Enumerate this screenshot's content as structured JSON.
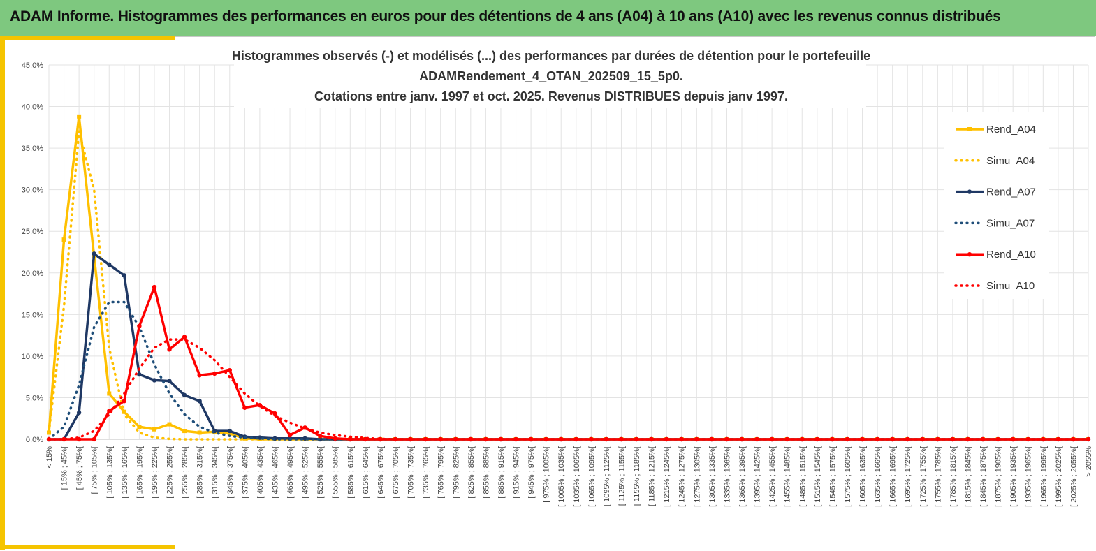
{
  "header": {
    "title": "ADAM Informe. Histogrammes des performances en euros pour des détentions de 4 ans (A04) à 10 ans (A10) avec les revenus connus distribués"
  },
  "chart_data": {
    "type": "line",
    "title_lines": [
      "Histogrammes observés (-) et modélisés (...) des performances par durées de détention pour le portefeuille",
      "ADAMRendement_4_OTAN_202509_15_5p0.",
      "Cotations entre janv. 1997 et oct. 2025. Revenus DISTRIBUES depuis janv 1997."
    ],
    "ylim": [
      0,
      45
    ],
    "y_ticks": [
      "0,0%",
      "5,0%",
      "10,0%",
      "15,0%",
      "20,0%",
      "25,0%",
      "30,0%",
      "35,0%",
      "40,0%",
      "45,0%"
    ],
    "grid": true,
    "legend_position": "right",
    "categories": [
      "< 15%",
      "[ 15% ; 45%[",
      "[ 45% ; 75%[",
      "[ 75% ; 105%[",
      "[ 105% ; 135%[",
      "[ 135% ; 165%[",
      "[ 165% ; 195%[",
      "[ 195% ; 225%[",
      "[ 225% ; 255%[",
      "[ 255% ; 285%[",
      "[ 285% ; 315%[",
      "[ 315% ; 345%[",
      "[ 345% ; 375%[",
      "[ 375% ; 405%[",
      "[ 405% ; 435%[",
      "[ 435% ; 465%[",
      "[ 465% ; 495%[",
      "[ 495% ; 525%[",
      "[ 525% ; 555%[",
      "[ 555% ; 585%[",
      "[ 585% ; 615%[",
      "[ 615% ; 645%[",
      "[ 645% ; 675%[",
      "[ 675% ; 705%[",
      "[ 705% ; 735%[",
      "[ 735% ; 765%[",
      "[ 765% ; 795%[",
      "[ 795% ; 825%[",
      "[ 825% ; 855%[",
      "[ 855% ; 885%[",
      "[ 885% ; 915%[",
      "[ 915% ; 945%[",
      "[ 945% ; 975%[",
      "[ 975% ; 1005%[",
      "[ 1005% ; 1035%[",
      "[ 1035% ; 1065%[",
      "[ 1065% ; 1095%[",
      "[ 1095% ; 1125%[",
      "[ 1125% ; 1155%[",
      "[ 1155% ; 1185%[",
      "[ 1185% ; 1215%[",
      "[ 1215% ; 1245%[",
      "[ 1245% ; 1275%[",
      "[ 1275% ; 1305%[",
      "[ 1305% ; 1335%[",
      "[ 1335% ; 1365%[",
      "[ 1365% ; 1395%[",
      "[ 1395% ; 1425%[",
      "[ 1425% ; 1455%[",
      "[ 1455% ; 1485%[",
      "[ 1485% ; 1515%[",
      "[ 1515% ; 1545%[",
      "[ 1545% ; 1575%[",
      "[ 1575% ; 1605%[",
      "[ 1605% ; 1635%[",
      "[ 1635% ; 1665%[",
      "[ 1665% ; 1695%[",
      "[ 1695% ; 1725%[",
      "[ 1725% ; 1755%[",
      "[ 1755% ; 1785%[",
      "[ 1785% ; 1815%[",
      "[ 1815% ; 1845%[",
      "[ 1845% ; 1875%[",
      "[ 1875% ; 1905%[",
      "[ 1905% ; 1935%[",
      "[ 1935% ; 1965%[",
      "[ 1965% ; 1995%[",
      "[ 1995% ; 2025%[",
      "[ 2025% ; 2055%[",
      "> 2055%"
    ],
    "series": [
      {
        "name": "Rend_A04",
        "color": "#FFC000",
        "dashed": false,
        "values": [
          0.8,
          24.0,
          38.8,
          22.0,
          5.5,
          3.3,
          1.5,
          1.2,
          1.8,
          1.0,
          0.8,
          0.9,
          0.7,
          0.1,
          0,
          0,
          0,
          0,
          0,
          0,
          0,
          0,
          0,
          0,
          0,
          0,
          0,
          0,
          0,
          0,
          0,
          0,
          0,
          0,
          0,
          0,
          0,
          0,
          0,
          0,
          0,
          0,
          0,
          0,
          0,
          0,
          0,
          0,
          0,
          0,
          0,
          0,
          0,
          0,
          0,
          0,
          0,
          0,
          0,
          0,
          0,
          0,
          0,
          0,
          0,
          0,
          0,
          0,
          0,
          0
        ]
      },
      {
        "name": "Simu_A04",
        "color": "#FFC000",
        "dashed": true,
        "values": [
          0.9,
          16.0,
          37.0,
          30.0,
          11.0,
          3.0,
          0.8,
          0.2,
          0.05,
          0,
          0,
          0,
          0,
          0,
          0,
          0,
          0,
          0,
          0,
          0,
          0,
          0,
          0,
          0,
          0,
          0,
          0,
          0,
          0,
          0,
          0,
          0,
          0,
          0,
          0,
          0,
          0,
          0,
          0,
          0,
          0,
          0,
          0,
          0,
          0,
          0,
          0,
          0,
          0,
          0,
          0,
          0,
          0,
          0,
          0,
          0,
          0,
          0,
          0,
          0,
          0,
          0,
          0,
          0,
          0,
          0,
          0,
          0,
          0,
          0
        ]
      },
      {
        "name": "Rend_A07",
        "color": "#1F3864",
        "dashed": false,
        "values": [
          0,
          0,
          3.2,
          22.3,
          21.0,
          19.7,
          7.8,
          7.1,
          7.0,
          5.3,
          4.6,
          1.0,
          1.0,
          0.3,
          0.2,
          0.1,
          0.1,
          0.1,
          0,
          0,
          0,
          0,
          0,
          0,
          0,
          0,
          0,
          0,
          0,
          0,
          0,
          0,
          0,
          0,
          0,
          0,
          0,
          0,
          0,
          0,
          0,
          0,
          0,
          0,
          0,
          0,
          0,
          0,
          0,
          0,
          0,
          0,
          0,
          0,
          0,
          0,
          0,
          0,
          0,
          0,
          0,
          0,
          0,
          0,
          0,
          0,
          0,
          0,
          0,
          0
        ]
      },
      {
        "name": "Simu_A07",
        "color": "#1F4E79",
        "dashed": true,
        "values": [
          0,
          1.5,
          6.5,
          13.5,
          16.5,
          16.5,
          13.5,
          9.0,
          5.5,
          3.0,
          1.5,
          0.8,
          0.4,
          0.2,
          0.1,
          0,
          0,
          0,
          0,
          0,
          0,
          0,
          0,
          0,
          0,
          0,
          0,
          0,
          0,
          0,
          0,
          0,
          0,
          0,
          0,
          0,
          0,
          0,
          0,
          0,
          0,
          0,
          0,
          0,
          0,
          0,
          0,
          0,
          0,
          0,
          0,
          0,
          0,
          0,
          0,
          0,
          0,
          0,
          0,
          0,
          0,
          0,
          0,
          0,
          0,
          0,
          0,
          0,
          0,
          0
        ]
      },
      {
        "name": "Rend_A10",
        "color": "#FF0000",
        "dashed": false,
        "values": [
          0,
          0,
          0,
          0,
          3.4,
          4.6,
          13.6,
          18.3,
          10.8,
          12.3,
          7.7,
          7.9,
          8.3,
          3.8,
          4.1,
          3.1,
          0.5,
          1.4,
          0.4,
          0.1,
          0,
          0,
          0,
          0,
          0,
          0,
          0,
          0,
          0,
          0,
          0,
          0,
          0,
          0,
          0,
          0,
          0,
          0,
          0,
          0,
          0,
          0,
          0,
          0,
          0,
          0,
          0,
          0,
          0,
          0,
          0,
          0,
          0,
          0,
          0,
          0,
          0,
          0,
          0,
          0,
          0,
          0,
          0,
          0,
          0,
          0,
          0,
          0,
          0,
          0
        ]
      },
      {
        "name": "Simu_A10",
        "color": "#FF0000",
        "dashed": true,
        "values": [
          0,
          0,
          0.2,
          1.0,
          3.0,
          5.5,
          8.5,
          11.0,
          12.0,
          12.0,
          11.0,
          9.5,
          7.5,
          5.5,
          4.0,
          2.8,
          2.0,
          1.3,
          0.8,
          0.5,
          0.3,
          0.15,
          0.05,
          0,
          0,
          0,
          0,
          0,
          0,
          0,
          0,
          0,
          0,
          0,
          0,
          0,
          0,
          0,
          0,
          0,
          0,
          0,
          0,
          0,
          0,
          0,
          0,
          0,
          0,
          0,
          0,
          0,
          0,
          0,
          0,
          0,
          0,
          0,
          0,
          0,
          0,
          0,
          0,
          0,
          0,
          0,
          0,
          0,
          0,
          0
        ]
      }
    ]
  }
}
